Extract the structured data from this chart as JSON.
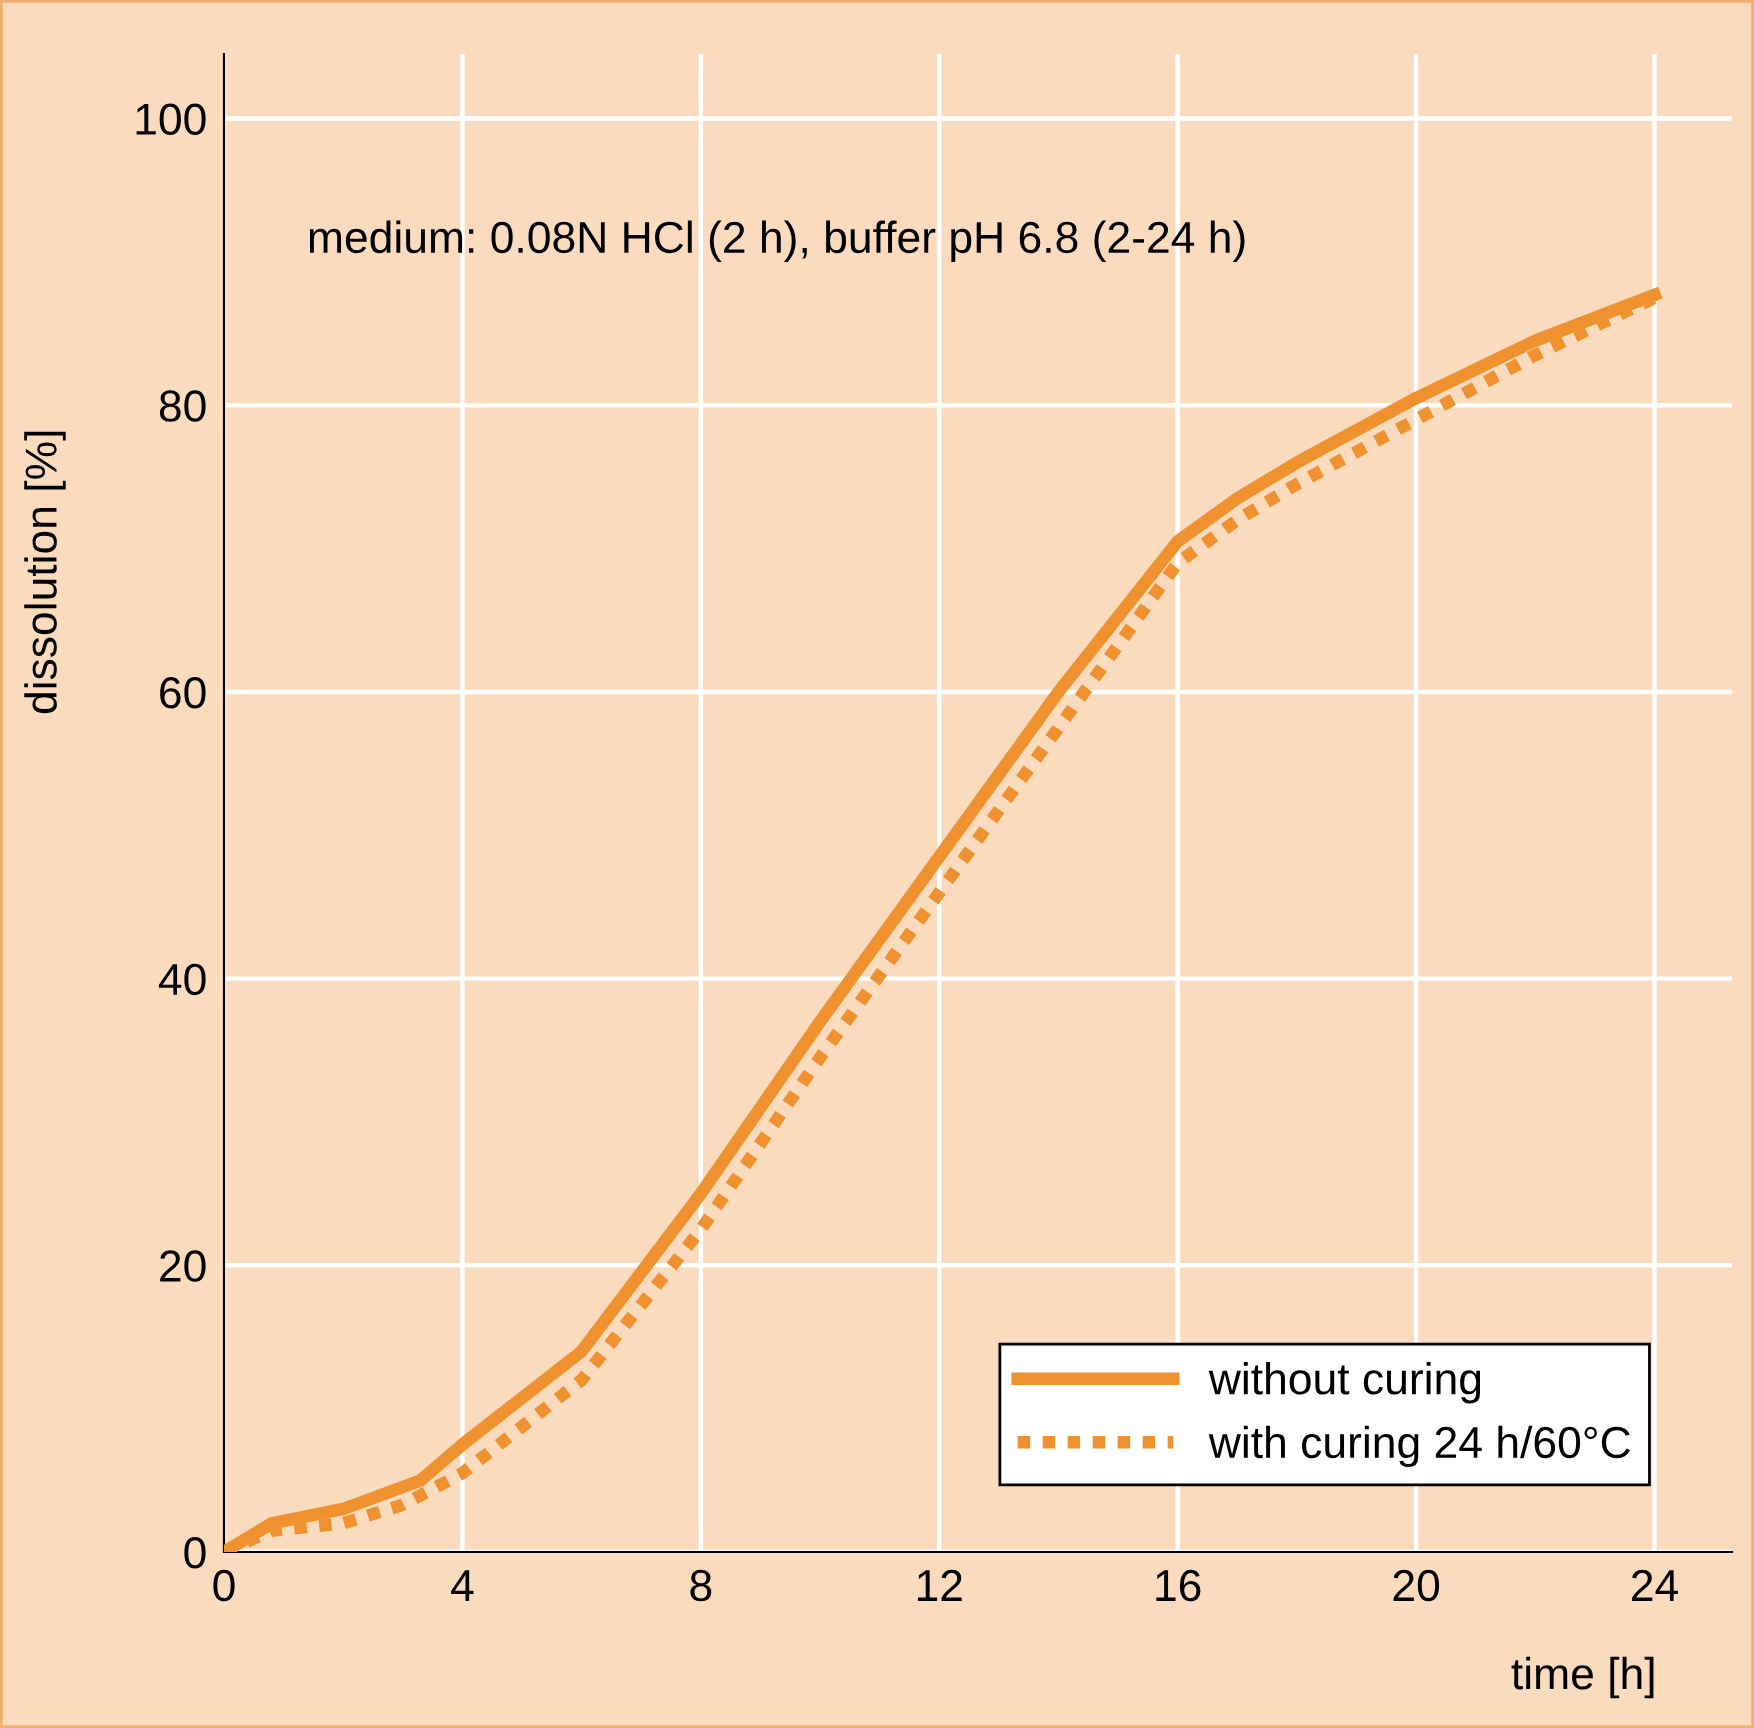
{
  "chart_data": {
    "type": "line",
    "xlabel": "time [h]",
    "ylabel": "dissolution [%]",
    "annotations": [
      "medium: 0.08N HCl (2 h), buffer pH 6.8 (2-24 h)"
    ],
    "series": [
      {
        "name": "without curing",
        "color": "#f0912f",
        "line_style": "solid",
        "x": [
          0,
          0.8,
          2,
          3.3,
          4,
          6,
          8,
          10,
          12,
          14,
          16,
          17,
          18,
          20,
          22,
          24
        ],
        "values": [
          0,
          2,
          3,
          5,
          7.5,
          14,
          25,
          37,
          48.5,
          60,
          70.5,
          73.5,
          76,
          80.5,
          84.5,
          87.7
        ]
      },
      {
        "name": "with curing 24 h/60°C",
        "color": "#f0912f",
        "line_style": "dotted",
        "x": [
          0,
          0.8,
          2,
          3,
          4,
          6,
          8,
          10,
          12,
          14,
          16,
          17,
          18,
          20,
          22,
          24
        ],
        "values": [
          0,
          1.5,
          2,
          3.3,
          5.5,
          12,
          22.5,
          34.5,
          46,
          57.5,
          69,
          72,
          74.5,
          79,
          83.5,
          87.5
        ]
      }
    ],
    "xlim": [
      0,
      25.3
    ],
    "ylim": [
      0,
      104.5
    ],
    "xticks": [
      0,
      4,
      8,
      12,
      16,
      20,
      24
    ],
    "yticks": [
      0,
      20,
      40,
      60,
      80,
      100
    ],
    "grid": true,
    "legend": "bottom right",
    "marker": "none"
  }
}
